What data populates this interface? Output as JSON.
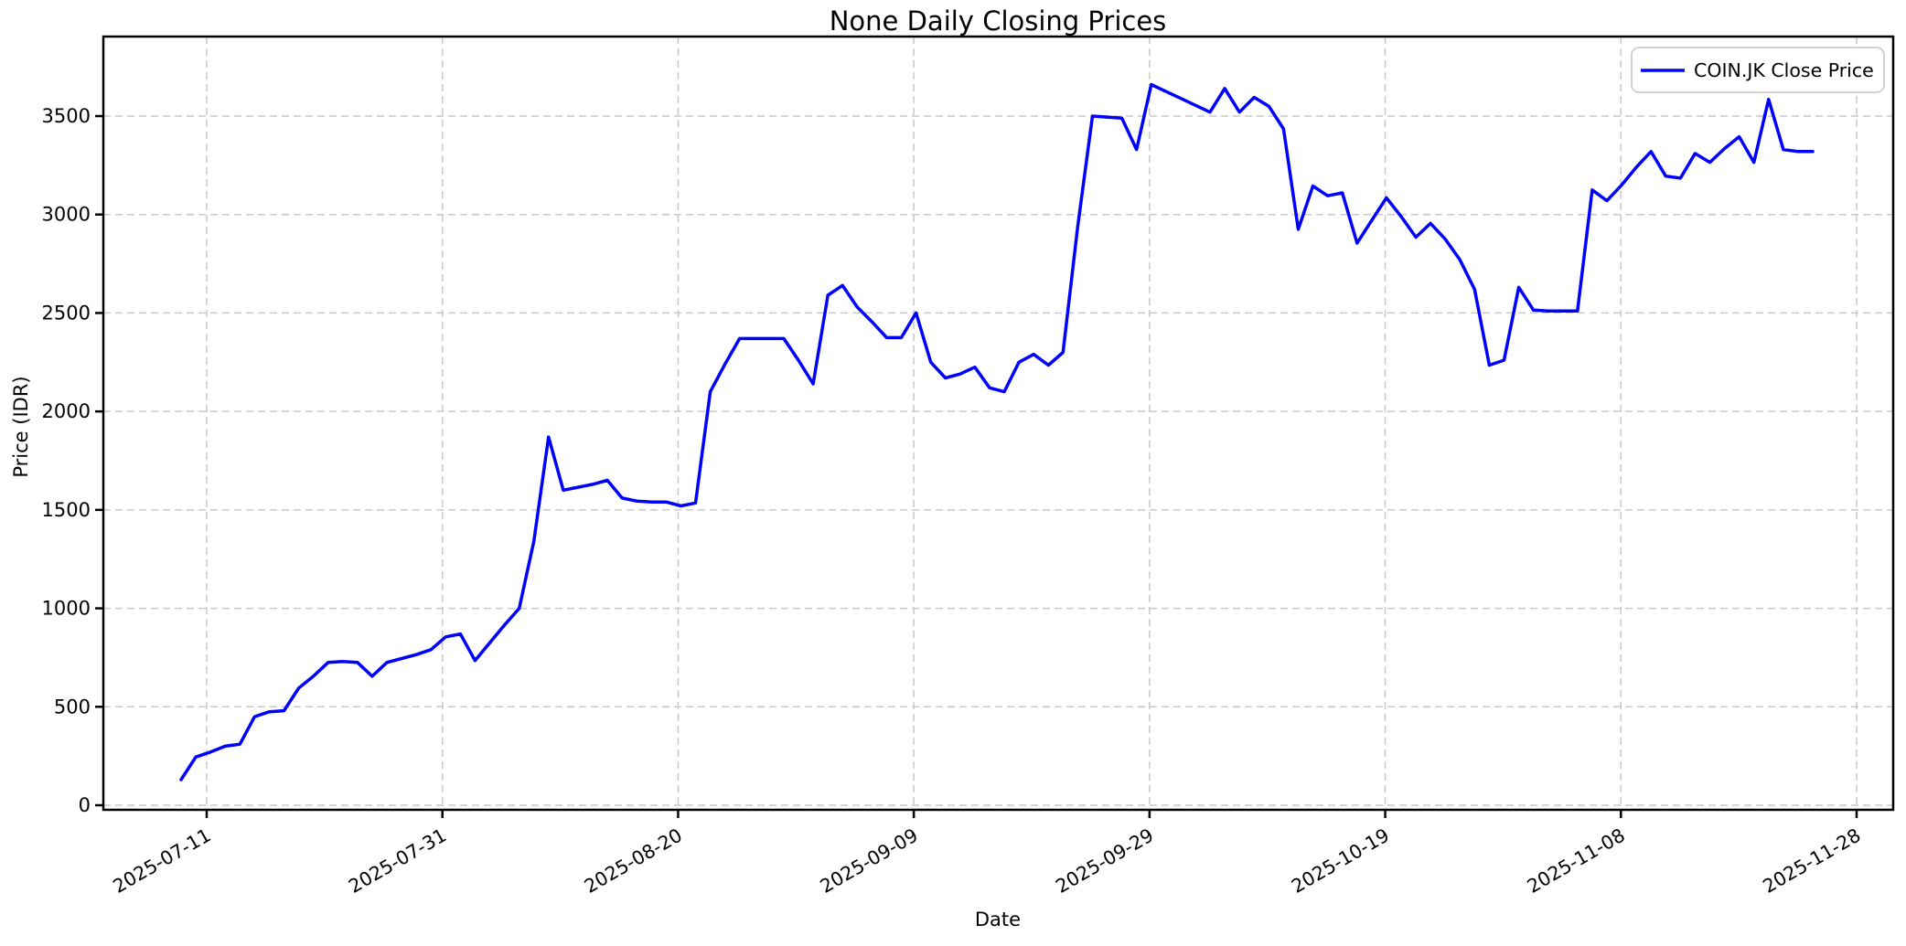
{
  "title": "None Daily Closing Prices",
  "axes": {
    "x_label": "Date",
    "y_label": "Price (IDR)",
    "x_tick_labels": [
      "2025-07-11",
      "2025-07-31",
      "2025-08-20",
      "2025-09-09",
      "2025-09-29",
      "2025-10-19",
      "2025-11-08",
      "2025-11-28"
    ],
    "y_tick_labels": [
      "0",
      "500",
      "1000",
      "1500",
      "2000",
      "2500",
      "3000",
      "3500"
    ]
  },
  "legend": {
    "label": "COIN.JK Close Price",
    "position": "upper right"
  },
  "colors": {
    "line": "#0000ff",
    "grid": "#c9c9c9",
    "spine": "#000000",
    "background": "#ffffff",
    "legend_border": "#cccccc"
  },
  "chart_data": {
    "type": "line",
    "title": "None Daily Closing Prices",
    "xlabel": "Date",
    "ylabel": "Price (IDR)",
    "x_ticks": [
      "2025-07-11",
      "2025-07-31",
      "2025-08-20",
      "2025-09-09",
      "2025-09-29",
      "2025-10-19",
      "2025-11-08",
      "2025-11-28"
    ],
    "y_ticks": [
      0,
      500,
      1000,
      1500,
      2000,
      2500,
      3000,
      3500
    ],
    "ylim": [
      -25,
      3905
    ],
    "grid": true,
    "grid_style": "dashed",
    "legend_position": "upper right",
    "x_unit": "trading-day index (daily closes, 2025-07 through 2025-11)",
    "series": [
      {
        "name": "COIN.JK Close Price",
        "color": "#0000ff",
        "values": [
          130,
          245,
          270,
          300,
          310,
          450,
          475,
          480,
          595,
          655,
          725,
          730,
          725,
          655,
          725,
          745,
          765,
          790,
          855,
          870,
          735,
          825,
          915,
          1000,
          1340,
          1870,
          1600,
          1615,
          1630,
          1650,
          1560,
          1545,
          1540,
          1540,
          1520,
          1535,
          2100,
          2240,
          2370,
          2370,
          2370,
          2370,
          2260,
          2140,
          2590,
          2640,
          2530,
          2455,
          2375,
          2375,
          2500,
          2250,
          2170,
          2190,
          2225,
          2120,
          2100,
          2250,
          2290,
          2235,
          2300,
          2940,
          3500,
          3495,
          3490,
          3330,
          3660,
          3625,
          3590,
          3555,
          3520,
          3640,
          3520,
          3595,
          3550,
          3435,
          2925,
          3145,
          3095,
          3110,
          2855,
          2970,
          3085,
          2990,
          2885,
          2955,
          2875,
          2770,
          2620,
          2235,
          2260,
          2630,
          2515,
          2510,
          2510,
          2510,
          3125,
          3070,
          3150,
          3240,
          3320,
          3195,
          3185,
          3310,
          3265,
          3335,
          3395,
          3265,
          3585,
          3330,
          3320,
          3320
        ]
      }
    ]
  }
}
